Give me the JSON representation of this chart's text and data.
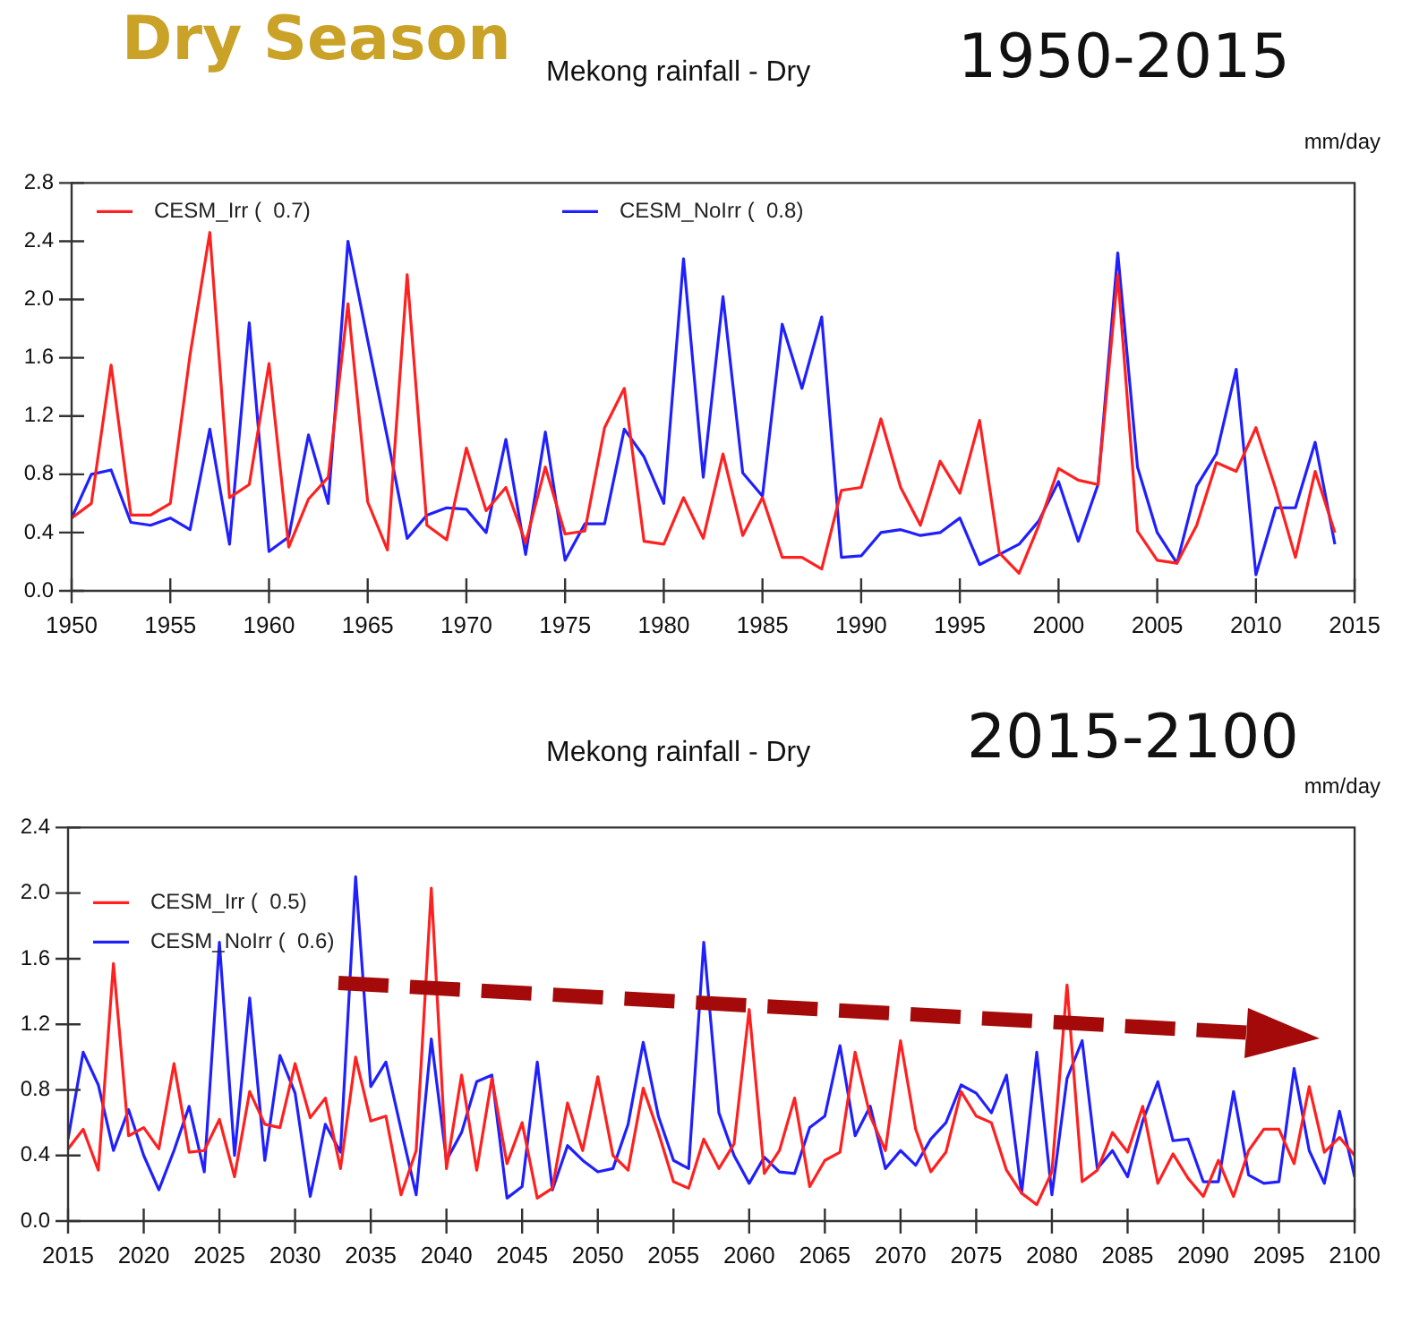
{
  "chart_data": [
    {
      "type": "line",
      "annotations": [
        "Dry Season"
      ],
      "title": "Mekong rainfall - Dry",
      "subtitle": "1950-2015",
      "ylabel": "mm/day",
      "legend": "top left",
      "marker": "none",
      "line_style": "solid",
      "x": [
        1950,
        1951,
        1952,
        1953,
        1954,
        1955,
        1956,
        1957,
        1958,
        1959,
        1960,
        1961,
        1962,
        1963,
        1964,
        1965,
        1966,
        1967,
        1968,
        1969,
        1970,
        1971,
        1972,
        1973,
        1974,
        1975,
        1976,
        1977,
        1978,
        1979,
        1980,
        1981,
        1982,
        1983,
        1984,
        1985,
        1986,
        1987,
        1988,
        1989,
        1990,
        1991,
        1992,
        1993,
        1994,
        1995,
        1996,
        1997,
        1998,
        1999,
        2000,
        2001,
        2002,
        2003,
        2004,
        2005,
        2006,
        2007,
        2008,
        2009,
        2010,
        2011,
        2012,
        2013,
        2014
      ],
      "xlim": [
        1950,
        2015
      ],
      "xticks": [
        1950,
        1955,
        1960,
        1965,
        1970,
        1975,
        1980,
        1985,
        1990,
        1995,
        2000,
        2005,
        2010,
        2015
      ],
      "ylim": [
        0,
        2.8
      ],
      "yticks": [
        {
          "value": 0,
          "label": "0.0"
        },
        {
          "value": 0.4,
          "label": "0.4"
        },
        {
          "value": 0.8,
          "label": "0.8"
        },
        {
          "value": 1.2,
          "label": "1.2"
        },
        {
          "value": 1.6,
          "label": "1.6"
        },
        {
          "value": 2.0,
          "label": "2.0"
        },
        {
          "value": 2.4,
          "label": "2.4"
        },
        {
          "value": 2.8,
          "label": "2.8"
        }
      ],
      "series": [
        {
          "name": "CESM_Irr (  0.7)",
          "color": "#ff2020",
          "values": [
            0.5,
            0.6,
            1.55,
            0.52,
            0.52,
            0.6,
            1.62,
            2.46,
            0.64,
            0.73,
            1.56,
            0.3,
            0.63,
            0.78,
            1.97,
            0.61,
            0.28,
            2.17,
            0.45,
            0.35,
            0.98,
            0.55,
            0.71,
            0.33,
            0.85,
            0.39,
            0.41,
            1.12,
            1.39,
            0.34,
            0.32,
            0.64,
            0.36,
            0.94,
            0.38,
            0.64,
            0.23,
            0.23,
            0.15,
            0.69,
            0.71,
            1.18,
            0.71,
            0.45,
            0.89,
            0.67,
            1.17,
            0.26,
            0.12,
            0.45,
            0.84,
            0.76,
            0.73,
            2.17,
            0.41,
            0.21,
            0.19,
            0.45,
            0.88,
            0.82,
            1.12,
            0.7,
            0.23,
            0.82,
            0.4
          ]
        },
        {
          "name": "CESM_NoIrr (  0.8)",
          "color": "#2020ff",
          "values": [
            0.5,
            0.8,
            0.83,
            0.47,
            0.45,
            0.5,
            0.42,
            1.11,
            0.32,
            1.84,
            0.27,
            0.37,
            1.07,
            0.6,
            2.4,
            1.72,
            1.05,
            0.36,
            0.52,
            0.57,
            0.56,
            0.4,
            1.04,
            0.25,
            1.09,
            0.21,
            0.46,
            0.46,
            1.11,
            0.92,
            0.6,
            2.28,
            0.78,
            2.02,
            0.81,
            0.65,
            1.83,
            1.39,
            1.88,
            0.23,
            0.24,
            0.4,
            0.42,
            0.38,
            0.4,
            0.5,
            0.18,
            0.25,
            0.32,
            0.48,
            0.75,
            0.34,
            0.73,
            2.32,
            0.85,
            0.4,
            0.19,
            0.72,
            0.94,
            1.52,
            0.11,
            0.57,
            0.57,
            1.02,
            0.32
          ]
        }
      ]
    },
    {
      "type": "line",
      "title": "Mekong rainfall - Dry",
      "subtitle": "2015-2100",
      "ylabel": "mm/day",
      "legend": "top left",
      "marker": "none",
      "line_style": "solid",
      "x": [
        2015,
        2016,
        2017,
        2018,
        2019,
        2020,
        2021,
        2022,
        2023,
        2024,
        2025,
        2026,
        2027,
        2028,
        2029,
        2030,
        2031,
        2032,
        2033,
        2034,
        2035,
        2036,
        2037,
        2038,
        2039,
        2040,
        2041,
        2042,
        2043,
        2044,
        2045,
        2046,
        2047,
        2048,
        2049,
        2050,
        2051,
        2052,
        2053,
        2054,
        2055,
        2056,
        2057,
        2058,
        2059,
        2060,
        2061,
        2062,
        2063,
        2064,
        2065,
        2066,
        2067,
        2068,
        2069,
        2070,
        2071,
        2072,
        2073,
        2074,
        2075,
        2076,
        2077,
        2078,
        2079,
        2080,
        2081,
        2082,
        2083,
        2084,
        2085,
        2086,
        2087,
        2088,
        2089,
        2090,
        2091,
        2092,
        2093,
        2094,
        2095,
        2096,
        2097,
        2098,
        2099,
        2100
      ],
      "xlim": [
        2015,
        2100
      ],
      "xticks": [
        2015,
        2020,
        2025,
        2030,
        2035,
        2040,
        2045,
        2050,
        2055,
        2060,
        2065,
        2070,
        2075,
        2080,
        2085,
        2090,
        2095,
        2100
      ],
      "ylim": [
        0,
        2.4
      ],
      "yticks": [
        {
          "value": 0,
          "label": "0.0"
        },
        {
          "value": 0.4,
          "label": "0.4"
        },
        {
          "value": 0.8,
          "label": "0.8"
        },
        {
          "value": 1.2,
          "label": "1.2"
        },
        {
          "value": 1.6,
          "label": "1.6"
        },
        {
          "value": 2.0,
          "label": "2.0"
        },
        {
          "value": 2.4,
          "label": "2.4"
        }
      ],
      "series": [
        {
          "name": "CESM_Irr (  0.5)",
          "color": "#ff2020",
          "values": [
            0.44,
            0.56,
            0.31,
            1.57,
            0.52,
            0.57,
            0.44,
            0.96,
            0.42,
            0.43,
            0.62,
            0.27,
            0.79,
            0.59,
            0.57,
            0.96,
            0.63,
            0.75,
            0.32,
            1.0,
            0.61,
            0.64,
            0.16,
            0.43,
            2.03,
            0.32,
            0.89,
            0.31,
            0.87,
            0.35,
            0.6,
            0.14,
            0.2,
            0.72,
            0.43,
            0.88,
            0.4,
            0.31,
            0.81,
            0.54,
            0.24,
            0.2,
            0.5,
            0.32,
            0.47,
            1.29,
            0.29,
            0.43,
            0.75,
            0.21,
            0.37,
            0.42,
            1.03,
            0.64,
            0.43,
            1.1,
            0.56,
            0.3,
            0.42,
            0.79,
            0.64,
            0.6,
            0.31,
            0.17,
            0.1,
            0.3,
            1.44,
            0.24,
            0.31,
            0.54,
            0.42,
            0.7,
            0.23,
            0.41,
            0.26,
            0.15,
            0.37,
            0.15,
            0.43,
            0.56,
            0.56,
            0.35,
            0.82,
            0.42,
            0.51,
            0.4
          ]
        },
        {
          "name": "CESM_NoIrr (  0.6)",
          "color": "#2020ff",
          "values": [
            0.5,
            1.03,
            0.83,
            0.43,
            0.68,
            0.4,
            0.19,
            0.43,
            0.7,
            0.3,
            1.7,
            0.4,
            1.36,
            0.37,
            1.01,
            0.78,
            0.15,
            0.59,
            0.42,
            2.1,
            0.82,
            0.97,
            0.56,
            0.16,
            1.11,
            0.37,
            0.54,
            0.85,
            0.89,
            0.14,
            0.21,
            0.97,
            0.19,
            0.46,
            0.37,
            0.3,
            0.32,
            0.59,
            1.09,
            0.64,
            0.37,
            0.32,
            1.7,
            0.66,
            0.4,
            0.23,
            0.39,
            0.3,
            0.29,
            0.57,
            0.64,
            1.07,
            0.52,
            0.7,
            0.32,
            0.43,
            0.34,
            0.5,
            0.6,
            0.83,
            0.78,
            0.66,
            0.89,
            0.17,
            1.03,
            0.16,
            0.87,
            1.1,
            0.32,
            0.43,
            0.27,
            0.61,
            0.85,
            0.49,
            0.5,
            0.24,
            0.24,
            0.79,
            0.28,
            0.23,
            0.24,
            0.93,
            0.43,
            0.23,
            0.67,
            0.27
          ]
        }
      ]
    }
  ]
}
